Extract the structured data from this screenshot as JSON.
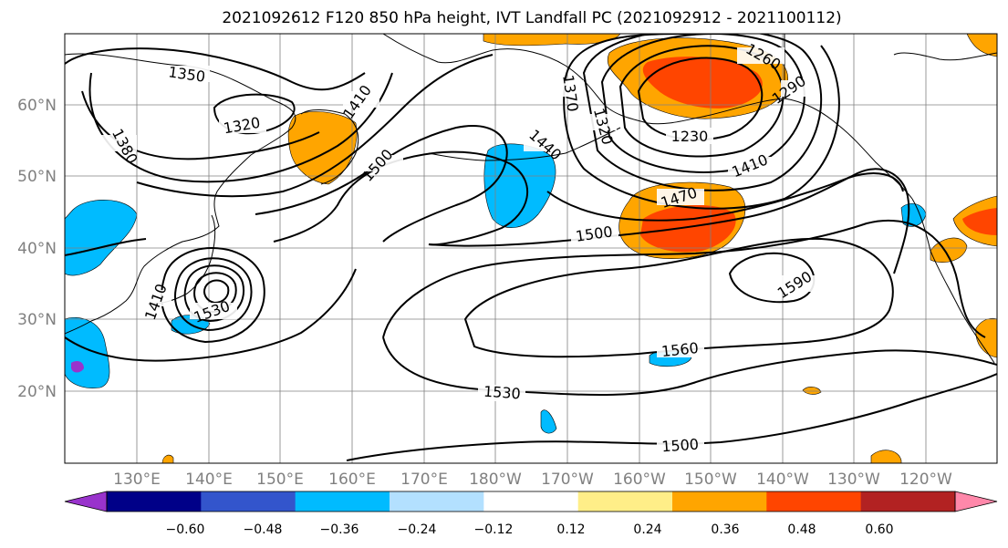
{
  "title": "2021092612 F120 850 hPa height, IVT Landfall PC (2021092912 - 2021100112)",
  "map": {
    "lon_labels": [
      "130°E",
      "140°E",
      "150°E",
      "160°E",
      "170°E",
      "180°W",
      "170°W",
      "160°W",
      "150°W",
      "140°W",
      "130°W",
      "120°W"
    ],
    "lat_labels": [
      "60°N",
      "50°N",
      "40°N",
      "30°N",
      "20°N"
    ],
    "contour_labels": [
      "1350",
      "1320",
      "1380",
      "1410",
      "1500",
      "1440",
      "1370",
      "1320",
      "1230",
      "1260",
      "1290",
      "1410",
      "1470",
      "1500",
      "1590",
      "1560",
      "1530",
      "1500",
      "1410",
      "1530"
    ]
  },
  "colorbar": {
    "colors": [
      "#9933CC",
      "#000088",
      "#3355CC",
      "#00BBFF",
      "#B3E0FF",
      "#FFFFFF",
      "#FFEE88",
      "#FFA500",
      "#FF4500",
      "#B22222",
      "#FF88AA"
    ],
    "tick_labels": [
      "−0.60",
      "−0.48",
      "−0.36",
      "−0.24",
      "−0.12",
      "0.12",
      "0.24",
      "0.36",
      "0.48",
      "0.60"
    ]
  }
}
